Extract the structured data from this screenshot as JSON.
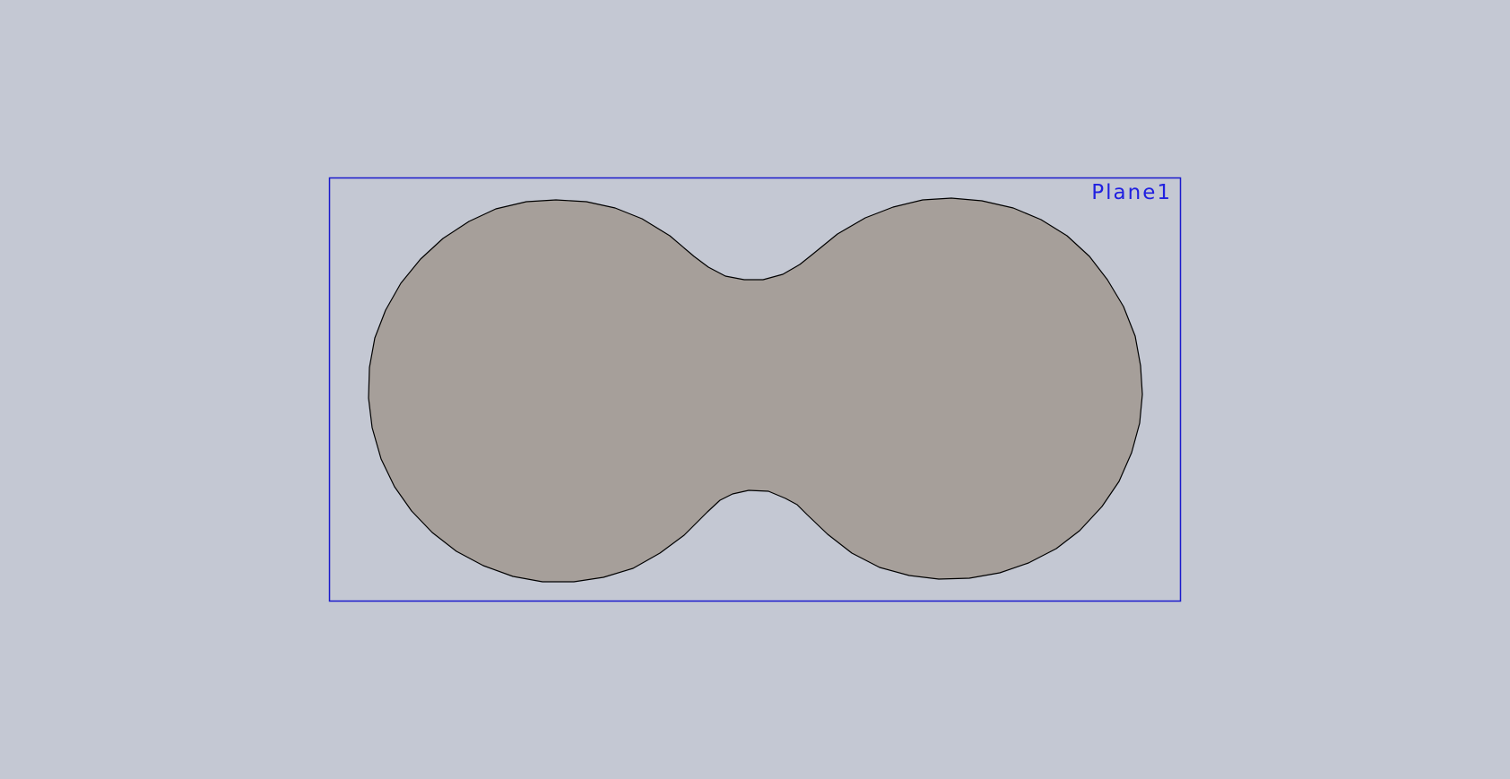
{
  "plane": {
    "label": "Plane1"
  },
  "colors": {
    "background": "#c4c8d3",
    "plane_border": "#1a1acc",
    "plane_label": "#2020e0",
    "sketch_fill": "#a69f9a",
    "sketch_edge": "#000000"
  }
}
